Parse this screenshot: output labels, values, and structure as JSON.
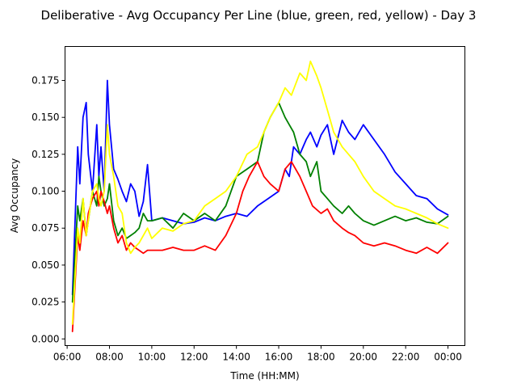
{
  "chart_data": {
    "type": "line",
    "title": "Deliberative - Avg Occupancy Per Line (blue, green, red, yellow) - Day 3",
    "xlabel": "Time (HH:MM)",
    "ylabel": "Avg Occupancy",
    "x_unit": "hours",
    "xlim": [
      5.9,
      24.8
    ],
    "ylim": [
      -0.0045,
      0.198
    ],
    "xticks": [
      {
        "value": 6,
        "label": "06:00"
      },
      {
        "value": 8,
        "label": "08:00"
      },
      {
        "value": 10,
        "label": "10:00"
      },
      {
        "value": 12,
        "label": "12:00"
      },
      {
        "value": 14,
        "label": "14:00"
      },
      {
        "value": 16,
        "label": "16:00"
      },
      {
        "value": 18,
        "label": "18:00"
      },
      {
        "value": 20,
        "label": "20:00"
      },
      {
        "value": 22,
        "label": "22:00"
      },
      {
        "value": 24,
        "label": "00:00"
      }
    ],
    "yticks": [
      {
        "value": 0.0,
        "label": "0.000"
      },
      {
        "value": 0.025,
        "label": "0.025"
      },
      {
        "value": 0.05,
        "label": "0.050"
      },
      {
        "value": 0.075,
        "label": "0.075"
      },
      {
        "value": 0.1,
        "label": "0.100"
      },
      {
        "value": 0.125,
        "label": "0.125"
      },
      {
        "value": 0.15,
        "label": "0.150"
      },
      {
        "value": 0.175,
        "label": "0.175"
      }
    ],
    "series": [
      {
        "color": "#0000ff",
        "x": [
          6.25,
          6.5,
          6.6,
          6.75,
          6.9,
          7.0,
          7.2,
          7.4,
          7.5,
          7.6,
          7.75,
          7.9,
          8.0,
          8.2,
          8.4,
          8.6,
          8.8,
          9.0,
          9.2,
          9.4,
          9.6,
          9.8,
          10.0,
          10.5,
          11.0,
          11.5,
          12.0,
          12.5,
          13.0,
          13.5,
          14.0,
          14.5,
          15.0,
          15.5,
          16.0,
          16.3,
          16.5,
          16.7,
          17.0,
          17.3,
          17.5,
          17.8,
          18.0,
          18.3,
          18.6,
          19.0,
          19.3,
          19.6,
          20.0,
          20.5,
          21.0,
          21.5,
          22.0,
          22.5,
          23.0,
          23.5,
          24.0
        ],
        "y": [
          0.03,
          0.13,
          0.105,
          0.15,
          0.16,
          0.125,
          0.1,
          0.145,
          0.11,
          0.13,
          0.1,
          0.175,
          0.145,
          0.115,
          0.108,
          0.1,
          0.093,
          0.105,
          0.1,
          0.083,
          0.093,
          0.118,
          0.08,
          0.082,
          0.08,
          0.078,
          0.079,
          0.082,
          0.08,
          0.083,
          0.085,
          0.083,
          0.09,
          0.095,
          0.1,
          0.115,
          0.11,
          0.13,
          0.125,
          0.135,
          0.14,
          0.13,
          0.138,
          0.145,
          0.125,
          0.148,
          0.14,
          0.135,
          0.145,
          0.135,
          0.125,
          0.113,
          0.105,
          0.097,
          0.095,
          0.088,
          0.084
        ]
      },
      {
        "color": "#008000",
        "x": [
          6.25,
          6.5,
          6.6,
          6.75,
          6.9,
          7.0,
          7.2,
          7.4,
          7.5,
          7.6,
          7.75,
          7.9,
          8.0,
          8.2,
          8.4,
          8.6,
          8.8,
          9.0,
          9.2,
          9.4,
          9.6,
          9.8,
          10.0,
          10.5,
          11.0,
          11.5,
          12.0,
          12.5,
          13.0,
          13.5,
          14.0,
          14.5,
          15.0,
          15.3,
          15.6,
          16.0,
          16.3,
          16.5,
          16.7,
          17.0,
          17.3,
          17.5,
          17.8,
          18.0,
          18.3,
          18.6,
          19.0,
          19.3,
          19.6,
          20.0,
          20.5,
          21.0,
          21.5,
          22.0,
          22.5,
          23.0,
          23.5,
          24.0
        ],
        "y": [
          0.025,
          0.09,
          0.08,
          0.095,
          0.07,
          0.08,
          0.1,
          0.09,
          0.11,
          0.1,
          0.09,
          0.095,
          0.105,
          0.08,
          0.07,
          0.075,
          0.068,
          0.07,
          0.072,
          0.075,
          0.085,
          0.08,
          0.08,
          0.082,
          0.075,
          0.085,
          0.08,
          0.085,
          0.08,
          0.09,
          0.11,
          0.115,
          0.12,
          0.14,
          0.15,
          0.16,
          0.15,
          0.145,
          0.14,
          0.125,
          0.12,
          0.11,
          0.12,
          0.1,
          0.095,
          0.09,
          0.085,
          0.09,
          0.085,
          0.08,
          0.077,
          0.08,
          0.083,
          0.08,
          0.082,
          0.079,
          0.078,
          0.083
        ]
      },
      {
        "color": "#ff0000",
        "x": [
          6.25,
          6.5,
          6.6,
          6.75,
          6.9,
          7.0,
          7.2,
          7.4,
          7.5,
          7.6,
          7.75,
          7.9,
          8.0,
          8.2,
          8.4,
          8.6,
          8.8,
          9.0,
          9.2,
          9.4,
          9.6,
          9.8,
          10.0,
          10.5,
          11.0,
          11.5,
          12.0,
          12.5,
          13.0,
          13.5,
          14.0,
          14.3,
          14.6,
          15.0,
          15.3,
          15.6,
          16.0,
          16.3,
          16.6,
          17.0,
          17.3,
          17.6,
          18.0,
          18.3,
          18.6,
          19.0,
          19.3,
          19.6,
          20.0,
          20.5,
          21.0,
          21.5,
          22.0,
          22.5,
          23.0,
          23.5,
          24.0
        ],
        "y": [
          0.005,
          0.07,
          0.06,
          0.08,
          0.07,
          0.085,
          0.095,
          0.1,
          0.09,
          0.1,
          0.093,
          0.085,
          0.09,
          0.075,
          0.065,
          0.07,
          0.06,
          0.065,
          0.062,
          0.06,
          0.058,
          0.06,
          0.06,
          0.06,
          0.062,
          0.06,
          0.06,
          0.063,
          0.06,
          0.07,
          0.085,
          0.1,
          0.11,
          0.12,
          0.11,
          0.105,
          0.1,
          0.115,
          0.12,
          0.11,
          0.1,
          0.09,
          0.085,
          0.088,
          0.08,
          0.075,
          0.072,
          0.07,
          0.065,
          0.063,
          0.065,
          0.063,
          0.06,
          0.058,
          0.062,
          0.058,
          0.065
        ]
      },
      {
        "color": "#ffff00",
        "x": [
          6.25,
          6.5,
          6.6,
          6.75,
          6.9,
          7.0,
          7.2,
          7.4,
          7.5,
          7.6,
          7.75,
          7.9,
          8.0,
          8.2,
          8.4,
          8.6,
          8.8,
          9.0,
          9.2,
          9.4,
          9.6,
          9.8,
          10.0,
          10.5,
          11.0,
          11.5,
          12.0,
          12.5,
          13.0,
          13.5,
          14.0,
          14.5,
          15.0,
          15.3,
          15.6,
          16.0,
          16.3,
          16.6,
          17.0,
          17.3,
          17.5,
          17.8,
          18.0,
          18.3,
          18.6,
          19.0,
          19.3,
          19.6,
          20.0,
          20.5,
          21.0,
          21.5,
          22.0,
          22.5,
          23.0,
          23.5,
          24.0
        ],
        "y": [
          0.01,
          0.075,
          0.065,
          0.095,
          0.07,
          0.08,
          0.1,
          0.105,
          0.095,
          0.09,
          0.1,
          0.145,
          0.125,
          0.11,
          0.09,
          0.085,
          0.065,
          0.058,
          0.062,
          0.065,
          0.07,
          0.075,
          0.068,
          0.075,
          0.073,
          0.078,
          0.08,
          0.09,
          0.095,
          0.1,
          0.11,
          0.125,
          0.13,
          0.14,
          0.15,
          0.16,
          0.17,
          0.165,
          0.18,
          0.175,
          0.188,
          0.178,
          0.17,
          0.155,
          0.14,
          0.13,
          0.125,
          0.12,
          0.11,
          0.1,
          0.095,
          0.09,
          0.088,
          0.085,
          0.082,
          0.078,
          0.075
        ]
      }
    ]
  }
}
